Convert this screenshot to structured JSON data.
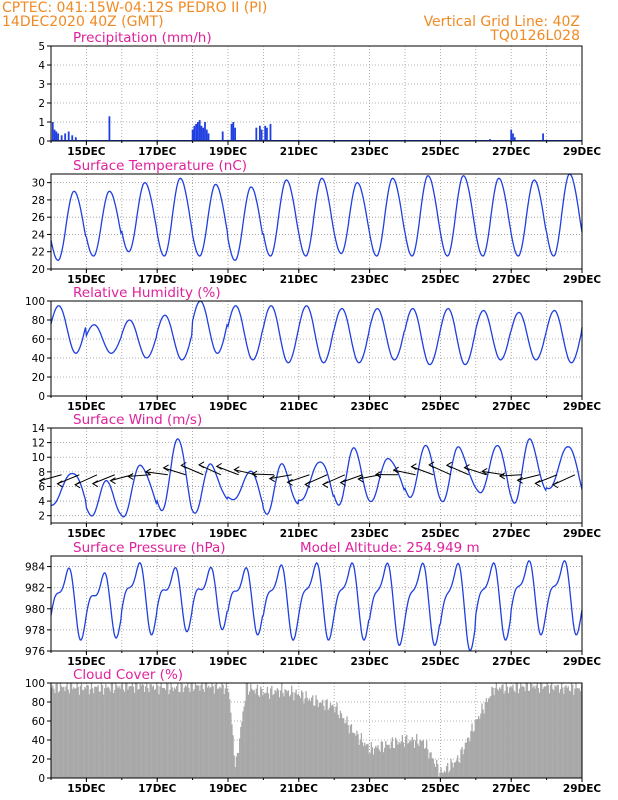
{
  "header": {
    "line1_left": "CPTEC:   041:15W-04:12S   PEDRO II (PI)",
    "line2_left": "14DEC2020 40Z (GMT)",
    "line2_right": "Vertical Grid Line: 40Z",
    "line3_right": "TQ0126L028"
  },
  "colors": {
    "header": "#f08a24",
    "title": "#e0219b",
    "series": "#1f3fe0",
    "cloud": "#a8a8a8",
    "grid": "#9a9a9a"
  },
  "chart_data": [
    {
      "id": "precip",
      "type": "bar",
      "title": "Precipitation (mm/h)",
      "ylim": [
        0,
        5
      ],
      "yticks": [
        0,
        1,
        2,
        3,
        4,
        5
      ],
      "xticks": [
        "15DEC",
        "17DEC",
        "19DEC",
        "21DEC",
        "23DEC",
        "25DEC",
        "27DEC",
        "29DEC"
      ],
      "grid": true,
      "x_start_day": 14,
      "peaks": [
        {
          "day": 14.05,
          "value": 1.0
        },
        {
          "day": 14.1,
          "value": 0.6
        },
        {
          "day": 14.15,
          "value": 0.5
        },
        {
          "day": 14.2,
          "value": 0.4
        },
        {
          "day": 14.3,
          "value": 0.3
        },
        {
          "day": 14.4,
          "value": 0.4
        },
        {
          "day": 14.5,
          "value": 0.5
        },
        {
          "day": 14.6,
          "value": 0.3
        },
        {
          "day": 14.7,
          "value": 0.2
        },
        {
          "day": 15.65,
          "value": 1.3
        },
        {
          "day": 18.0,
          "value": 0.6
        },
        {
          "day": 18.05,
          "value": 0.8
        },
        {
          "day": 18.1,
          "value": 0.9
        },
        {
          "day": 18.15,
          "value": 1.0
        },
        {
          "day": 18.2,
          "value": 1.1
        },
        {
          "day": 18.25,
          "value": 0.8
        },
        {
          "day": 18.3,
          "value": 0.7
        },
        {
          "day": 18.35,
          "value": 1.0
        },
        {
          "day": 18.4,
          "value": 0.6
        },
        {
          "day": 18.45,
          "value": 0.4
        },
        {
          "day": 18.85,
          "value": 0.5
        },
        {
          "day": 19.1,
          "value": 0.9
        },
        {
          "day": 19.15,
          "value": 1.0
        },
        {
          "day": 19.2,
          "value": 0.7
        },
        {
          "day": 19.8,
          "value": 0.7
        },
        {
          "day": 19.9,
          "value": 0.8
        },
        {
          "day": 19.95,
          "value": 0.6
        },
        {
          "day": 20.05,
          "value": 0.8
        },
        {
          "day": 20.1,
          "value": 0.7
        },
        {
          "day": 20.2,
          "value": 0.9
        },
        {
          "day": 26.4,
          "value": 0.1
        },
        {
          "day": 27.0,
          "value": 0.6
        },
        {
          "day": 27.05,
          "value": 0.4
        },
        {
          "day": 27.1,
          "value": 0.2
        },
        {
          "day": 27.9,
          "value": 0.4
        }
      ]
    },
    {
      "id": "temp",
      "type": "line",
      "title": "Surface Temperature (nC)",
      "ylim": [
        20,
        31
      ],
      "yticks": [
        20,
        22,
        24,
        26,
        28,
        30
      ],
      "xticks": [
        "15DEC",
        "17DEC",
        "19DEC",
        "21DEC",
        "23DEC",
        "25DEC",
        "27DEC",
        "29DEC"
      ],
      "grid": true,
      "daily_max": [
        29.0,
        29.0,
        30.0,
        30.5,
        29.8,
        29.5,
        30.3,
        30.5,
        30.0,
        30.5,
        30.8,
        30.8,
        30.5,
        30.3,
        31.0,
        31.0
      ],
      "daily_min": [
        21.0,
        21.5,
        22.0,
        21.5,
        21.5,
        21.0,
        21.5,
        21.5,
        21.8,
        21.5,
        21.5,
        21.5,
        21.5,
        21.5,
        21.5,
        21.5
      ],
      "start_value": 24.5,
      "end_value": 26.0
    },
    {
      "id": "rh",
      "type": "line",
      "title": "Relative Humidity (%)",
      "ylim": [
        0,
        100
      ],
      "yticks": [
        0,
        20,
        40,
        60,
        80,
        100
      ],
      "xticks": [
        "15DEC",
        "17DEC",
        "19DEC",
        "21DEC",
        "23DEC",
        "25DEC",
        "27DEC",
        "29DEC"
      ],
      "grid": true,
      "daily_max": [
        95,
        75,
        80,
        85,
        100,
        95,
        95,
        95,
        92,
        92,
        92,
        92,
        90,
        88,
        90,
        95
      ],
      "daily_min": [
        45,
        45,
        40,
        38,
        45,
        38,
        35,
        35,
        35,
        38,
        33,
        33,
        38,
        38,
        35,
        35
      ],
      "start_value": 58,
      "end_value": 55
    },
    {
      "id": "wind",
      "type": "line",
      "title": "Surface Wind (m/s)",
      "ylim": [
        1,
        14
      ],
      "yticks": [
        2,
        4,
        6,
        8,
        10,
        12,
        14
      ],
      "xticks": [
        "15DEC",
        "17DEC",
        "19DEC",
        "21DEC",
        "23DEC",
        "25DEC",
        "27DEC",
        "29DEC"
      ],
      "grid": true,
      "daily_max": [
        8.5,
        6.0,
        9.5,
        12.0,
        9.0,
        8.0,
        8.5,
        10.0,
        10.5,
        10.5,
        11.0,
        11.5,
        11.5,
        12.0,
        12.0,
        11.5
      ],
      "daily_min": [
        3.0,
        2.5,
        2.0,
        2.5,
        3.0,
        3.5,
        3.0,
        3.5,
        4.0,
        4.0,
        4.5,
        4.5,
        4.5,
        4.5,
        5.0,
        5.0
      ],
      "arrows_note": "wind direction vectors drawn along the series"
    },
    {
      "id": "pres",
      "type": "line",
      "title": "Surface Pressure (hPa)",
      "annotation": "Model Altitude:  254.949  m",
      "ylim": [
        976,
        985
      ],
      "yticks": [
        976,
        978,
        980,
        982,
        984
      ],
      "xticks": [
        "15DEC",
        "17DEC",
        "19DEC",
        "21DEC",
        "23DEC",
        "25DEC",
        "27DEC",
        "29DEC"
      ],
      "grid": true,
      "daily_max": [
        983.5,
        983.0,
        984.0,
        983.5,
        983.5,
        983.5,
        983.8,
        984.0,
        984.0,
        984.0,
        984.0,
        984.0,
        984.0,
        984.2,
        984.2,
        984.2
      ],
      "daily_min": [
        978.0,
        978.2,
        978.5,
        978.8,
        979.0,
        978.5,
        978.0,
        978.0,
        978.0,
        977.5,
        977.5,
        977.0,
        978.0,
        978.5,
        978.5,
        978.5
      ]
    },
    {
      "id": "cloud",
      "type": "area",
      "title": "Cloud Cover (%)",
      "ylim": [
        0,
        100
      ],
      "yticks": [
        0,
        20,
        40,
        60,
        80,
        100
      ],
      "xticks": [
        "15DEC",
        "17DEC",
        "19DEC",
        "21DEC",
        "23DEC",
        "25DEC",
        "27DEC",
        "29DEC"
      ],
      "grid": true,
      "x": [
        14.0,
        14.5,
        15.0,
        15.5,
        16.0,
        16.5,
        17.0,
        17.5,
        18.0,
        18.5,
        19.0,
        19.2,
        19.5,
        20.0,
        20.5,
        21.0,
        21.5,
        22.0,
        22.5,
        23.0,
        23.5,
        24.0,
        24.5,
        25.0,
        25.5,
        26.0,
        26.5,
        27.0,
        27.5,
        28.0,
        28.5,
        29.0
      ],
      "values": [
        95,
        96,
        95,
        95,
        97,
        97,
        96,
        95,
        97,
        97,
        95,
        10,
        95,
        90,
        92,
        88,
        80,
        75,
        50,
        30,
        35,
        40,
        38,
        5,
        20,
        60,
        95,
        95,
        97,
        97,
        95,
        95
      ]
    }
  ]
}
